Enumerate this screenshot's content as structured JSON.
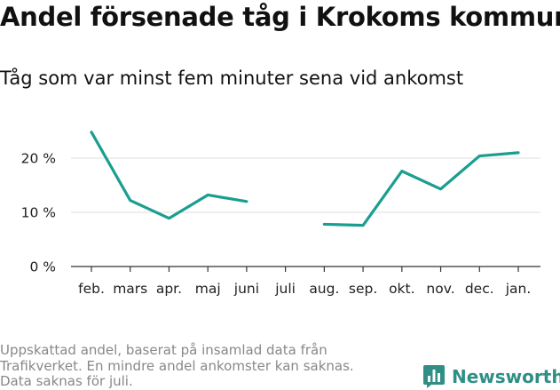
{
  "chart_data": {
    "type": "line",
    "title": "Andel försenade tåg i Krokoms kommun",
    "subtitle": "Tåg som var minst fem minuter sena vid ankomst",
    "categories": [
      "feb.",
      "mars",
      "apr.",
      "maj",
      "juni",
      "juli",
      "aug.",
      "sep.",
      "okt.",
      "nov.",
      "dec.",
      "jan."
    ],
    "series": [
      {
        "values": [
          24.8,
          12.2,
          8.9,
          13.2,
          12.0,
          null,
          7.8,
          7.6,
          17.6,
          14.3,
          20.4,
          21.0
        ]
      }
    ],
    "y_ticks": [
      0,
      10,
      20
    ],
    "y_tick_labels": [
      "0 %",
      "10 %",
      "20 %"
    ],
    "ylim": [
      0,
      26
    ],
    "grid": true,
    "line_color": "#1a9e8f",
    "grid_color": "#dddddd",
    "axis_color": "#333333"
  },
  "footnote": {
    "lines": [
      "Uppskattad andel, baserat på insamlad data från",
      "Trafikverket. En mindre andel ankomster kan saknas.",
      "Data saknas för juli."
    ]
  },
  "brand": {
    "name": "Newsworthy",
    "color": "#2f8f86",
    "icon": "bar-chart-logo-icon"
  }
}
